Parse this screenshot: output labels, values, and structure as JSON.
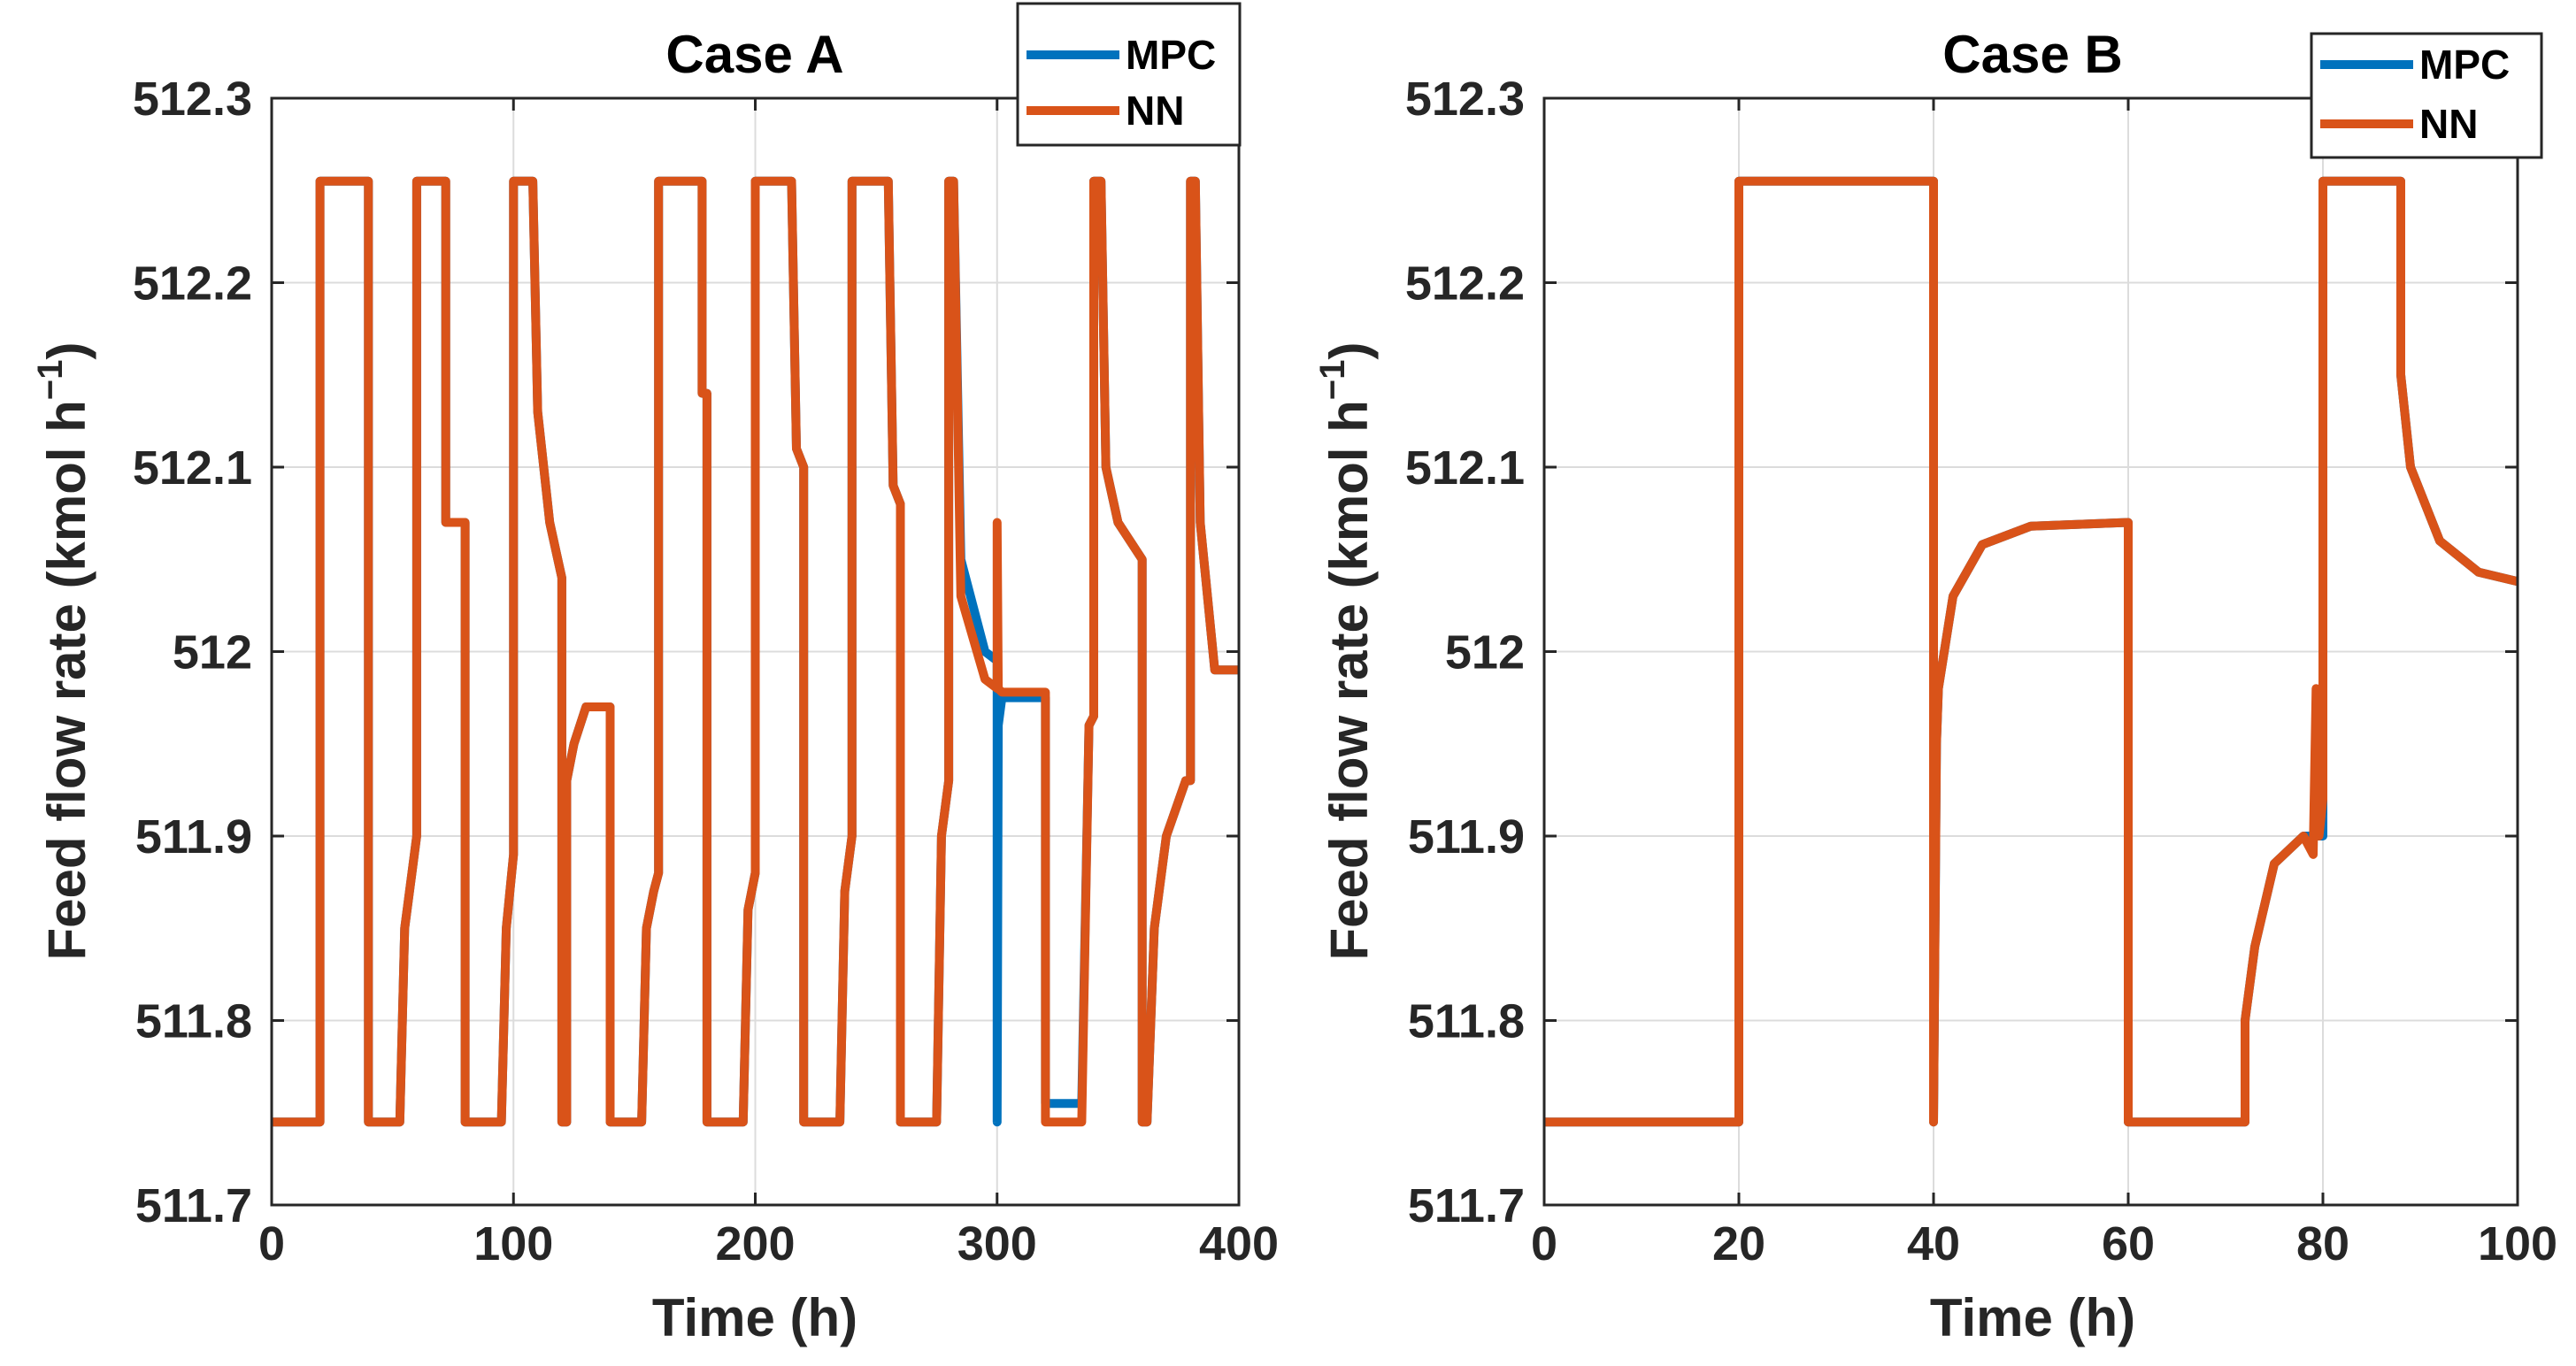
{
  "colors": {
    "mpc": "#0072BD",
    "nn": "#D95319"
  },
  "chart_data": [
    {
      "type": "line",
      "title": "Case A",
      "xlabel": "Time (h)",
      "ylabel": "Feed flow rate (kmol h",
      "ylabel_sup": "−1",
      "ylabel_close": ")",
      "xlim": [
        0,
        400
      ],
      "ylim": [
        511.7,
        512.3
      ],
      "xticks": [
        0,
        100,
        200,
        300,
        400
      ],
      "xtick_labels": [
        "0",
        "100",
        "200",
        "300",
        "400"
      ],
      "yticks": [
        511.7,
        511.8,
        511.9,
        512,
        512.1,
        512.2,
        512.3
      ],
      "ytick_labels": [
        "511.7",
        "511.8",
        "511.9",
        "512",
        "512.1",
        "512.2",
        "512.3"
      ],
      "grid": true,
      "legend_position": "top-right",
      "series": [
        {
          "name": "MPC",
          "x": [
            0,
            20,
            20,
            40,
            40,
            45,
            45,
            53,
            55,
            58,
            60,
            60,
            72,
            72,
            80,
            80,
            95,
            97,
            100,
            100,
            108,
            110,
            115,
            120,
            120,
            122,
            122,
            125,
            130,
            140,
            140,
            145,
            145,
            153,
            155,
            158,
            160,
            160,
            178,
            178,
            180,
            180,
            195,
            197,
            200,
            200,
            215,
            217,
            220,
            220,
            235,
            237,
            240,
            240,
            255,
            257,
            260,
            260,
            275,
            277,
            280,
            280,
            282,
            285,
            295,
            300,
            300,
            300.5,
            302,
            310,
            320,
            320,
            335,
            338,
            340,
            340,
            343,
            345,
            350,
            360,
            360,
            362,
            365,
            370,
            378,
            380,
            380,
            382,
            384,
            390,
            400
          ],
          "y": [
            511.745,
            511.745,
            512.255,
            512.255,
            511.745,
            511.745,
            511.745,
            511.745,
            511.85,
            511.88,
            511.9,
            512.255,
            512.255,
            512.07,
            512.07,
            511.745,
            511.745,
            511.85,
            511.89,
            512.255,
            512.255,
            512.13,
            512.07,
            512.04,
            511.745,
            511.745,
            511.93,
            511.95,
            511.97,
            511.97,
            511.745,
            511.745,
            511.745,
            511.745,
            511.85,
            511.87,
            511.88,
            512.255,
            512.255,
            512.14,
            512.14,
            511.745,
            511.745,
            511.86,
            511.88,
            512.255,
            512.255,
            512.11,
            512.1,
            511.745,
            511.745,
            511.87,
            511.9,
            512.255,
            512.255,
            512.09,
            512.08,
            511.745,
            511.745,
            511.9,
            511.93,
            512.255,
            512.255,
            512.05,
            512.0,
            511.995,
            511.745,
            511.96,
            511.975,
            511.975,
            511.975,
            511.755,
            511.755,
            511.96,
            511.965,
            512.255,
            512.255,
            512.1,
            512.07,
            512.05,
            511.745,
            511.745,
            511.85,
            511.9,
            511.93,
            511.93,
            512.255,
            512.255,
            512.07,
            511.99,
            511.99
          ]
        },
        {
          "name": "NN",
          "x": [
            0,
            20,
            20,
            40,
            40,
            45,
            45,
            53,
            55,
            58,
            60,
            60,
            72,
            72,
            80,
            80,
            95,
            97,
            100,
            100,
            108,
            110,
            115,
            120,
            120,
            122,
            122,
            125,
            130,
            140,
            140,
            145,
            145,
            153,
            155,
            158,
            160,
            160,
            178,
            178,
            180,
            180,
            195,
            197,
            200,
            200,
            215,
            217,
            220,
            220,
            235,
            237,
            240,
            240,
            255,
            257,
            260,
            260,
            275,
            277,
            280,
            280,
            282,
            285,
            295,
            300,
            300,
            300.5,
            302,
            310,
            320,
            320,
            335,
            338,
            340,
            340,
            343,
            345,
            350,
            360,
            360,
            362,
            365,
            370,
            378,
            380,
            380,
            382,
            384,
            390,
            400
          ],
          "y": [
            511.745,
            511.745,
            512.255,
            512.255,
            511.745,
            511.745,
            511.745,
            511.745,
            511.85,
            511.88,
            511.9,
            512.255,
            512.255,
            512.07,
            512.07,
            511.745,
            511.745,
            511.85,
            511.89,
            512.255,
            512.255,
            512.13,
            512.07,
            512.04,
            511.745,
            511.745,
            511.93,
            511.95,
            511.97,
            511.97,
            511.745,
            511.745,
            511.745,
            511.745,
            511.85,
            511.87,
            511.88,
            512.255,
            512.255,
            512.14,
            512.14,
            511.745,
            511.745,
            511.86,
            511.88,
            512.255,
            512.255,
            512.11,
            512.1,
            511.745,
            511.745,
            511.87,
            511.9,
            512.255,
            512.255,
            512.09,
            512.08,
            511.745,
            511.745,
            511.9,
            511.93,
            512.255,
            512.255,
            512.03,
            511.985,
            511.98,
            512.07,
            511.98,
            511.978,
            511.978,
            511.978,
            511.745,
            511.745,
            511.96,
            511.965,
            512.255,
            512.255,
            512.1,
            512.07,
            512.05,
            511.745,
            511.745,
            511.85,
            511.9,
            511.93,
            511.93,
            512.255,
            512.255,
            512.07,
            511.99,
            511.99
          ]
        }
      ]
    },
    {
      "type": "line",
      "title": "Case B",
      "xlabel": "Time (h)",
      "ylabel": "Feed flow rate (kmol h",
      "ylabel_sup": "−1",
      "ylabel_close": ")",
      "xlim": [
        0,
        100
      ],
      "ylim": [
        511.7,
        512.3
      ],
      "xticks": [
        0,
        20,
        40,
        60,
        80,
        100
      ],
      "xtick_labels": [
        "0",
        "20",
        "40",
        "60",
        "80",
        "100"
      ],
      "yticks": [
        511.7,
        511.8,
        511.9,
        512,
        512.1,
        512.2,
        512.3
      ],
      "ytick_labels": [
        "511.7",
        "511.8",
        "511.9",
        "512",
        "512.1",
        "512.2",
        "512.3"
      ],
      "grid": true,
      "legend_position": "top-right",
      "series": [
        {
          "name": "MPC",
          "x": [
            0,
            20,
            20,
            40,
            40,
            40.3,
            40.5,
            42,
            45,
            50,
            55,
            60,
            60,
            72,
            72,
            73,
            75,
            78,
            79.5,
            79.6,
            80,
            80,
            88,
            88,
            89,
            92,
            96,
            100
          ],
          "y": [
            511.745,
            511.745,
            512.255,
            512.255,
            511.745,
            511.95,
            511.98,
            512.03,
            512.058,
            512.068,
            512.069,
            512.07,
            511.745,
            511.745,
            511.8,
            511.84,
            511.885,
            511.9,
            511.9,
            511.9,
            511.9,
            512.255,
            512.255,
            512.15,
            512.1,
            512.06,
            512.043,
            512.038
          ]
        },
        {
          "name": "NN",
          "x": [
            0,
            20,
            20,
            40,
            40,
            40.3,
            40.5,
            42,
            45,
            50,
            55,
            60,
            60,
            72,
            72,
            73,
            75,
            78,
            79,
            79.3,
            79.6,
            80,
            80,
            88,
            88,
            89,
            92,
            96,
            100
          ],
          "y": [
            511.745,
            511.745,
            512.255,
            512.255,
            511.745,
            511.95,
            511.98,
            512.03,
            512.058,
            512.068,
            512.069,
            512.07,
            511.745,
            511.745,
            511.8,
            511.84,
            511.885,
            511.9,
            511.89,
            511.98,
            511.9,
            511.92,
            512.255,
            512.255,
            512.15,
            512.1,
            512.06,
            512.043,
            512.038
          ]
        }
      ]
    }
  ]
}
